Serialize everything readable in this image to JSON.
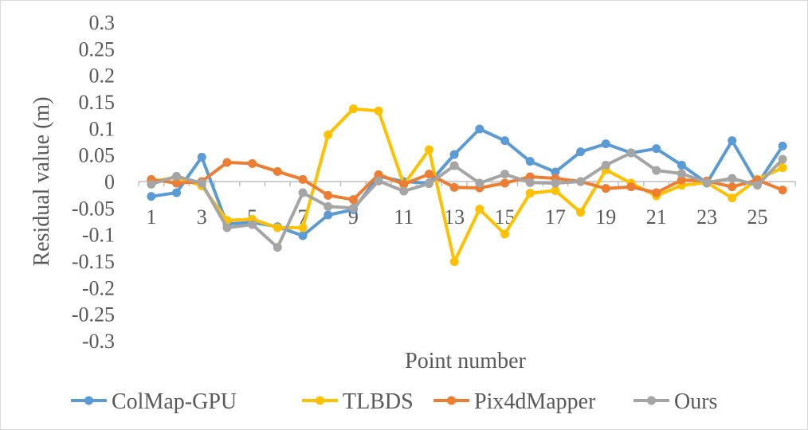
{
  "chart_data": {
    "type": "line",
    "xlabel": "Point number",
    "ylabel": "Residual value (m)",
    "ylim": [
      -0.3,
      0.3
    ],
    "y_ticks": [
      "0.3",
      "0.25",
      "0.2",
      "0.15",
      "0.1",
      "0.05",
      "0",
      "-0.05",
      "-0.1",
      "-0.15",
      "-0.2",
      "-0.25",
      "-0.3"
    ],
    "x": [
      1,
      2,
      3,
      4,
      5,
      6,
      7,
      8,
      9,
      10,
      11,
      12,
      13,
      14,
      15,
      16,
      17,
      18,
      19,
      20,
      21,
      22,
      23,
      24,
      25,
      26
    ],
    "x_tick_labels": [
      "1",
      "3",
      "5",
      "7",
      "9",
      "11",
      "13",
      "15",
      "17",
      "19",
      "21",
      "23",
      "25"
    ],
    "grid": false,
    "legend": "bottom",
    "series": [
      {
        "name": "ColMap-GPU",
        "color": "#5B9BD5",
        "values": [
          -0.028,
          -0.021,
          0.046,
          -0.08,
          -0.077,
          -0.085,
          -0.102,
          -0.063,
          -0.053,
          0.01,
          0.0,
          -0.003,
          0.051,
          0.099,
          0.077,
          0.038,
          0.018,
          0.056,
          0.071,
          0.054,
          0.062,
          0.031,
          -0.003,
          0.077,
          -0.005,
          0.067
        ]
      },
      {
        "name": "TLBDS",
        "color": "#FFC000",
        "values": [
          0.0,
          0.008,
          -0.008,
          -0.073,
          -0.071,
          -0.087,
          -0.087,
          0.088,
          0.137,
          0.133,
          -0.006,
          0.06,
          -0.151,
          -0.052,
          -0.099,
          -0.022,
          -0.017,
          -0.058,
          0.022,
          -0.003,
          -0.027,
          -0.007,
          -0.002,
          -0.031,
          0.004,
          0.026
        ]
      },
      {
        "name": "Pix4dMapper",
        "color": "#ED7D31",
        "values": [
          0.004,
          -0.003,
          0.0,
          0.036,
          0.034,
          0.019,
          0.004,
          -0.026,
          -0.034,
          0.013,
          -0.005,
          0.014,
          -0.011,
          -0.012,
          -0.003,
          0.009,
          0.006,
          0.0,
          -0.013,
          -0.01,
          -0.021,
          0.003,
          0.001,
          -0.01,
          0.003,
          -0.016
        ]
      },
      {
        "name": "Ours",
        "color": "#A5A5A5",
        "values": [
          -0.005,
          0.01,
          -0.003,
          -0.087,
          -0.081,
          -0.124,
          -0.021,
          -0.047,
          -0.05,
          0.001,
          -0.018,
          -0.004,
          0.03,
          -0.003,
          0.014,
          -0.002,
          -0.003,
          0.0,
          0.031,
          0.054,
          0.021,
          0.015,
          -0.002,
          0.006,
          -0.007,
          0.042
        ]
      }
    ]
  }
}
